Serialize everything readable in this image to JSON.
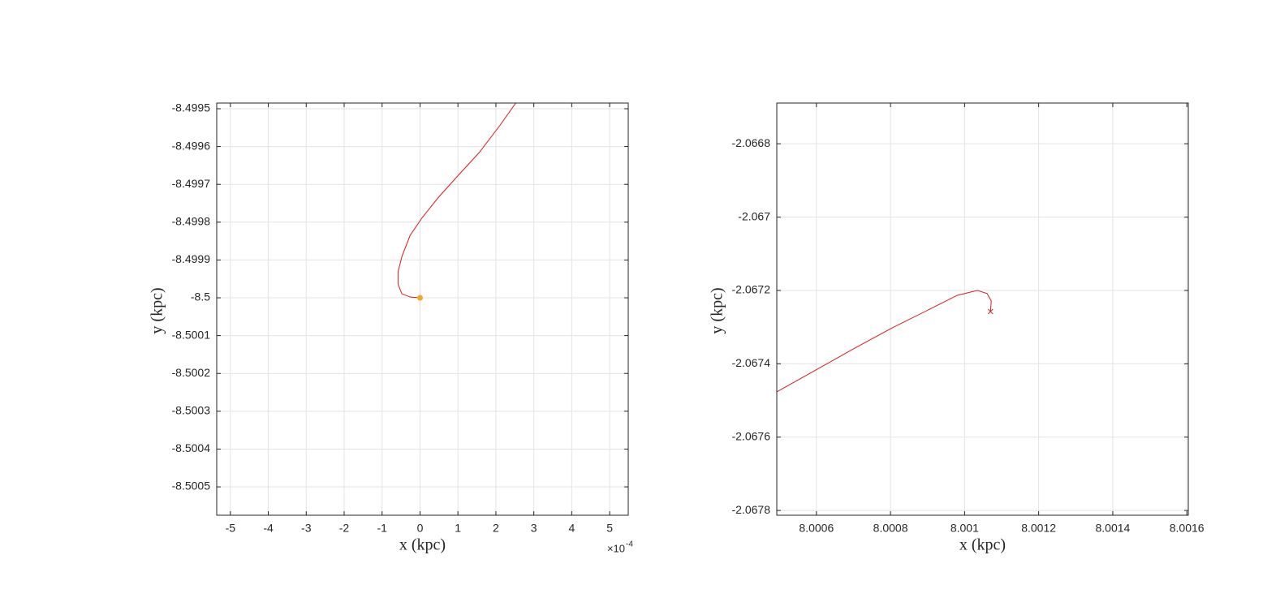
{
  "chart_data": [
    {
      "type": "line",
      "xlabel": "x (kpc)",
      "ylabel": "y (kpc)",
      "x_exponent_base": "×10",
      "x_exponent": "-4",
      "xlim": [
        -5.36,
        5.49
      ],
      "xticks": [
        -5,
        -4,
        -3,
        -2,
        -1,
        0,
        1,
        2,
        3,
        4,
        5
      ],
      "ylim": [
        -8.500575,
        -8.499485
      ],
      "yticks": [
        -8.4995,
        -8.4996,
        -8.4997,
        -8.4998,
        -8.4999,
        -8.5,
        -8.5001,
        -8.5002,
        -8.5003,
        -8.5004,
        -8.5005
      ],
      "grid": true,
      "series": [
        {
          "color": "#d81b1b",
          "x": [
            0,
            -0.26,
            -0.48,
            -0.58,
            -0.58,
            -0.47,
            -0.26,
            0.06,
            0.49,
            1.03,
            1.56,
            2.1,
            2.57
          ],
          "y": [
            -8.5,
            -8.4999979,
            -8.4999893,
            -8.4999635,
            -8.4999313,
            -8.4998884,
            -8.4998348,
            -8.4997876,
            -8.4997339,
            -8.4996738,
            -8.4996159,
            -8.4995451,
            -8.4994785
          ]
        },
        {
          "color": "#f5a623",
          "marker": "o",
          "x": [
            0
          ],
          "y": [
            -8.5
          ]
        }
      ]
    },
    {
      "type": "line",
      "xlabel": "x (kpc)",
      "ylabel": "y (kpc)",
      "xlim": [
        8.000493,
        8.001604
      ],
      "xticks": [
        8.0006,
        8.0008,
        8.001,
        8.0012,
        8.0014,
        8.0016
      ],
      "ylim": [
        -2.067813,
        -2.066689
      ],
      "yticks": [
        -2.0668,
        -2.067,
        -2.0672,
        -2.0674,
        -2.0676,
        -2.0678
      ],
      "grid": true,
      "series": [
        {
          "color": "#d81b1b",
          "x": [
            8.000493,
            8.000587,
            8.000696,
            8.000805,
            8.000915,
            8.00098,
            8.001035,
            8.001061,
            8.001072,
            8.00107
          ],
          "y": [
            -2.0674765,
            -2.0674235,
            -2.0673615,
            -2.0673018,
            -2.0672465,
            -2.0672133,
            -2.0672,
            -2.0672088,
            -2.0672288,
            -2.0672575
          ]
        },
        {
          "color": "#d81b1b",
          "marker": "x",
          "x": [
            8.00107
          ],
          "y": [
            -2.0672575
          ]
        }
      ]
    }
  ]
}
